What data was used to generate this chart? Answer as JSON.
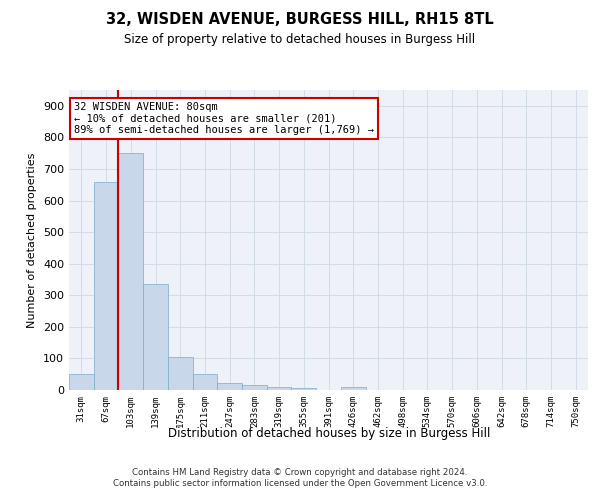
{
  "title": "32, WISDEN AVENUE, BURGESS HILL, RH15 8TL",
  "subtitle": "Size of property relative to detached houses in Burgess Hill",
  "xlabel": "Distribution of detached houses by size in Burgess Hill",
  "ylabel": "Number of detached properties",
  "footnote1": "Contains HM Land Registry data © Crown copyright and database right 2024.",
  "footnote2": "Contains public sector information licensed under the Open Government Licence v3.0.",
  "annotation_line1": "32 WISDEN AVENUE: 80sqm",
  "annotation_line2": "← 10% of detached houses are smaller (201)",
  "annotation_line3": "89% of semi-detached houses are larger (1,769) →",
  "bar_categories": [
    "31sqm",
    "67sqm",
    "103sqm",
    "139sqm",
    "175sqm",
    "211sqm",
    "247sqm",
    "283sqm",
    "319sqm",
    "355sqm",
    "391sqm",
    "426sqm",
    "462sqm",
    "498sqm",
    "534sqm",
    "570sqm",
    "606sqm",
    "642sqm",
    "678sqm",
    "714sqm",
    "750sqm"
  ],
  "bar_heights": [
    50,
    660,
    750,
    335,
    105,
    50,
    22,
    15,
    10,
    7,
    0,
    10,
    0,
    0,
    0,
    0,
    0,
    0,
    0,
    0,
    0
  ],
  "bar_color": "#c8d8ea",
  "bar_edge_color": "#7baac8",
  "vline_color": "#cc0000",
  "vline_x": 1.5,
  "annotation_box_edge_color": "#cc0000",
  "grid_color": "#ccd8e4",
  "background_color": "#eef2f8",
  "ylim": [
    0,
    950
  ],
  "yticks": [
    0,
    100,
    200,
    300,
    400,
    500,
    600,
    700,
    800,
    900
  ],
  "figsize": [
    6.0,
    5.0
  ],
  "dpi": 100
}
